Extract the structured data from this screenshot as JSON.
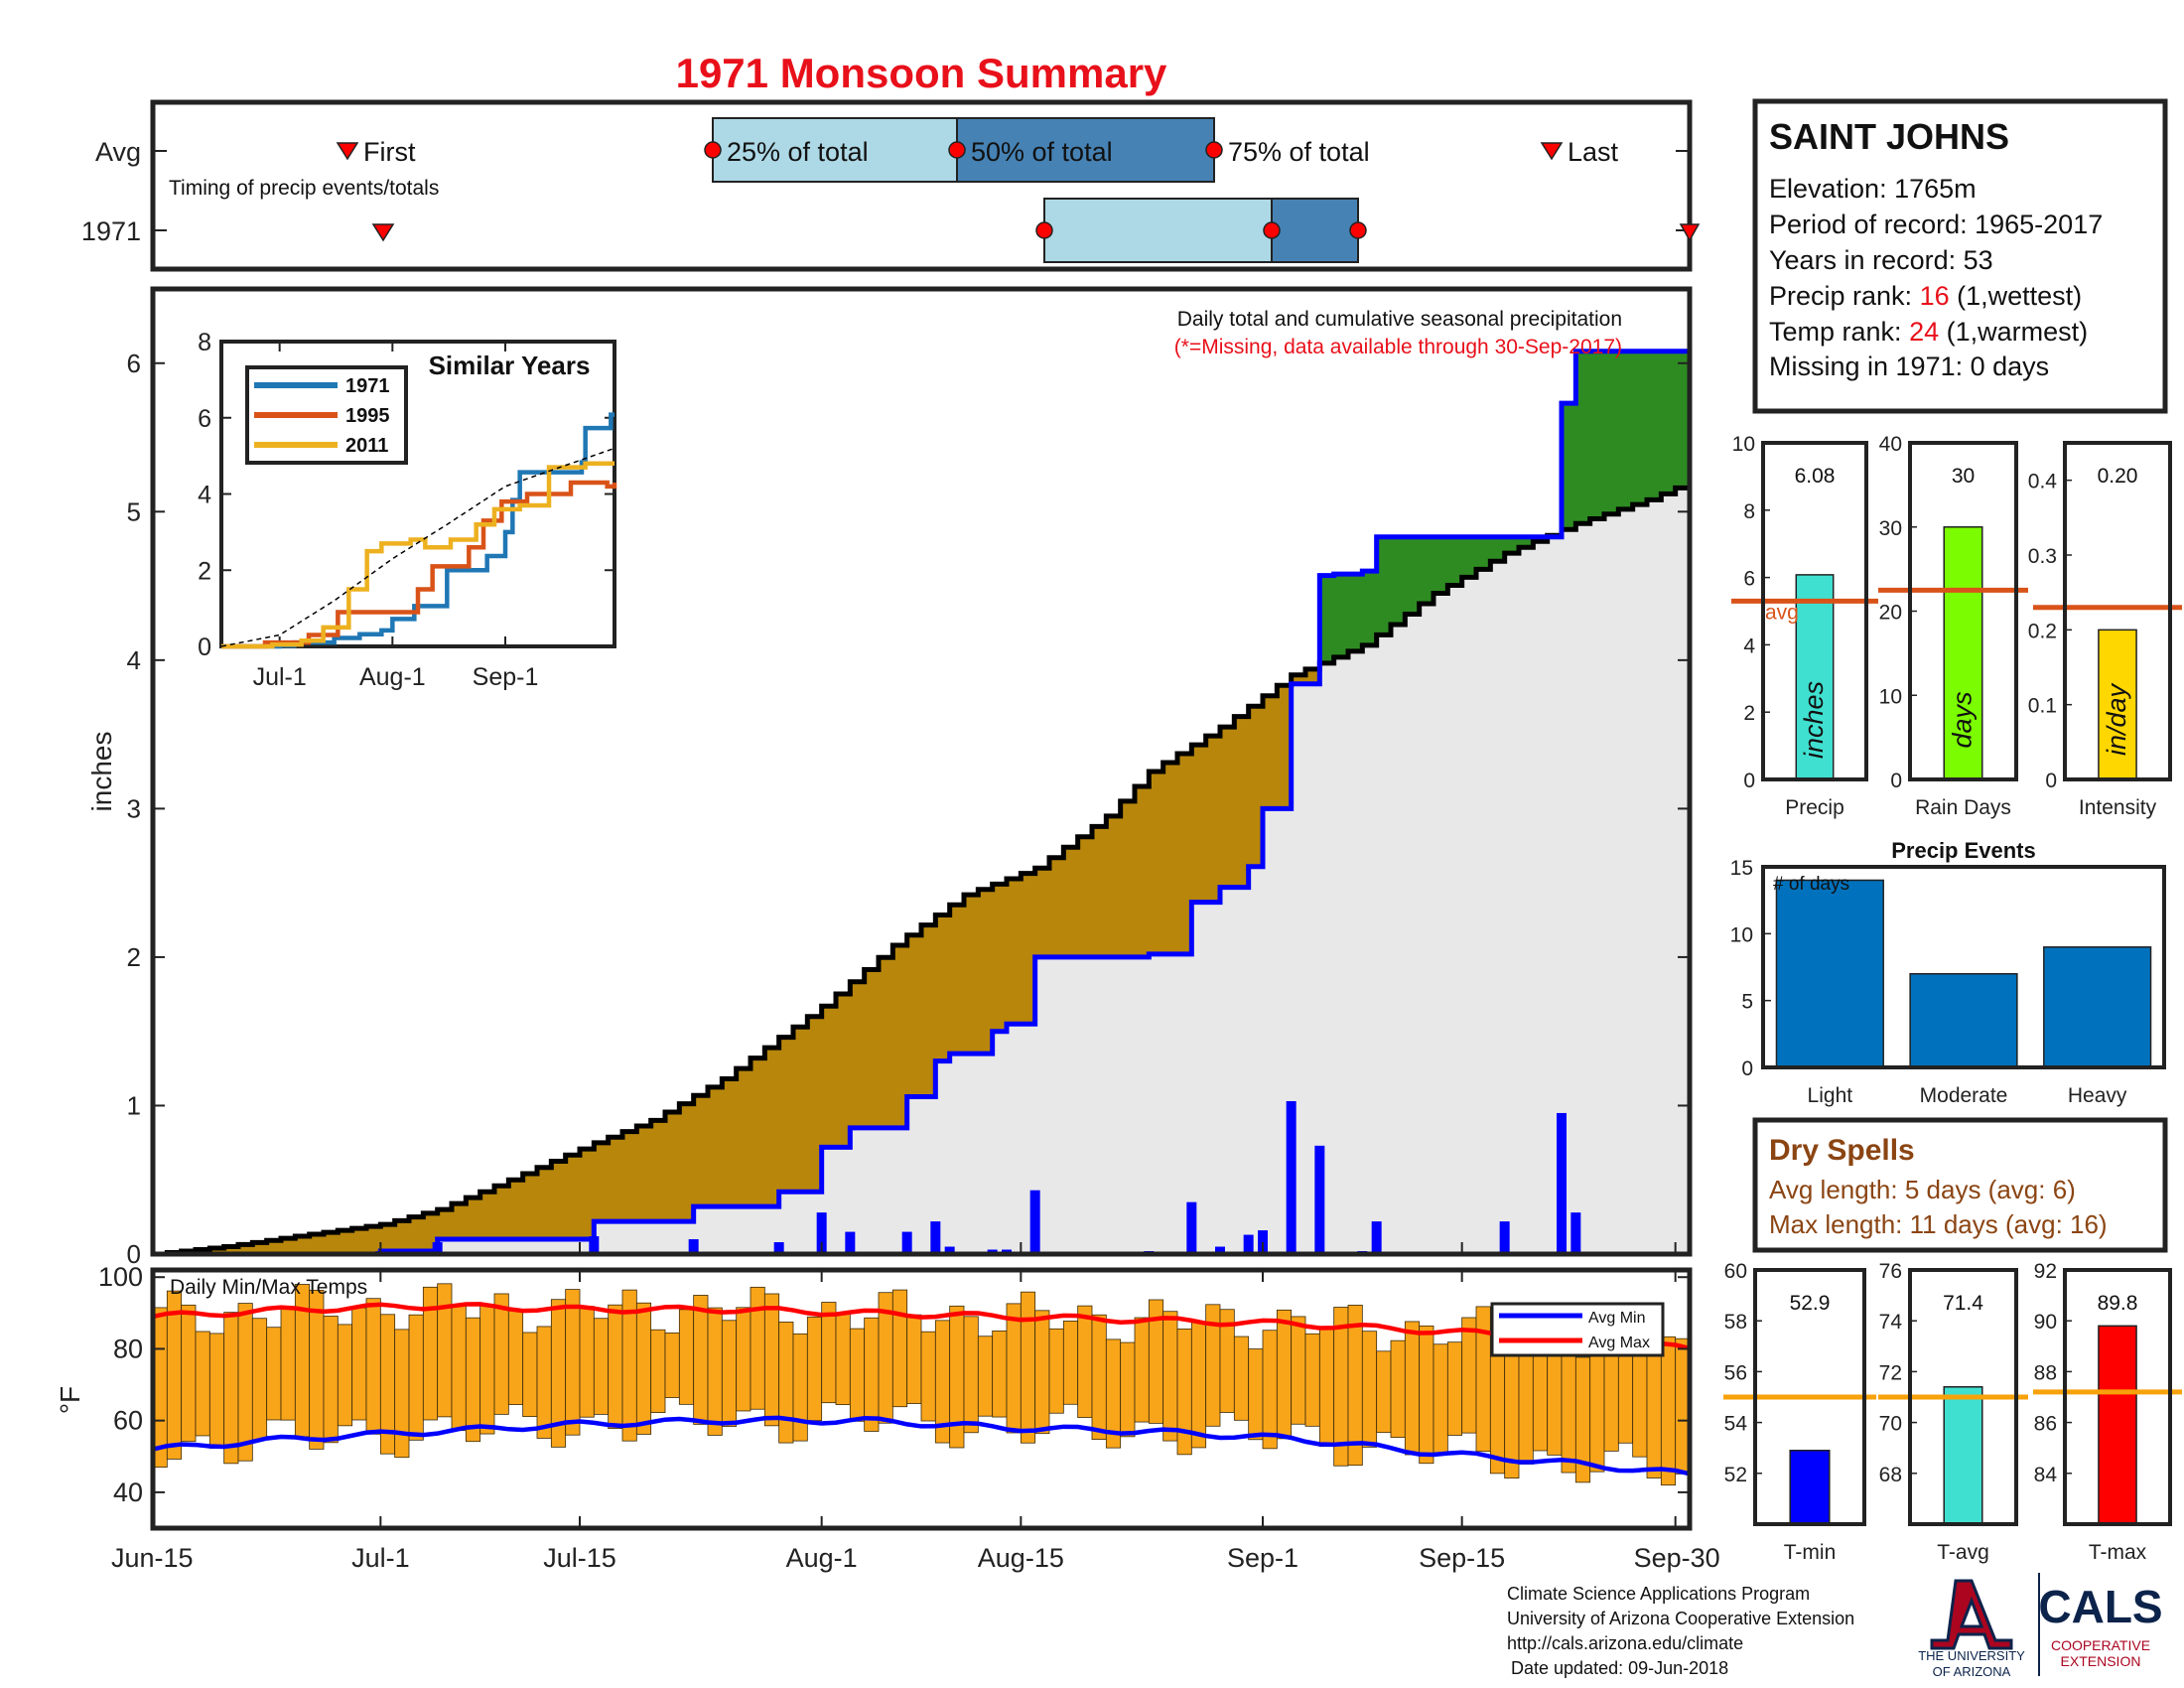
{
  "title": "1971 Monsoon Summary",
  "timing": {
    "row_avg": "Avg",
    "row_year": "1971",
    "subtitle": "Timing of precip events/totals",
    "first_label": "First",
    "last_label": "Last",
    "p25_label": "25% of total",
    "p50_label": "50% of total",
    "p75_label": "75% of total",
    "avg": {
      "first": "Jun-28",
      "p25": "Jul-24",
      "p50": "Aug-7",
      "p75": "Aug-23",
      "last": "Sep-22"
    },
    "year": {
      "first": "Jul-1",
      "p25": "Aug-16",
      "p50": "Sep-1",
      "p75": "Sep-6",
      "last": "Sep-30"
    }
  },
  "station": {
    "name": "SAINT JOHNS",
    "elevation": "Elevation: 1765m",
    "period": "Period of record: 1965-2017",
    "years": "Years in record: 53",
    "precip_rank_label": "Precip rank: ",
    "precip_rank_value": "16",
    "precip_rank_note": " (1,wettest)",
    "temp_rank_label": "Temp rank: ",
    "temp_rank_value": "24",
    "temp_rank_note": " (1,warmest)",
    "missing": "Missing in 1971: 0 days"
  },
  "main_chart": {
    "note1": "Daily total and cumulative seasonal precipitation",
    "note2": "(*=Missing, data available through 30-Sep-2017)",
    "ylabel": "inches"
  },
  "inset": {
    "title": "Similar Years"
  },
  "temp_chart": {
    "title": "Daily Min/Max Temps",
    "ylabel": "°F",
    "legend_min": "Avg Min",
    "legend_max": "Avg Max"
  },
  "summary_bars": {
    "avg_label": "avg"
  },
  "events": {
    "title": "Precip Events",
    "note": "# of days"
  },
  "dry": {
    "title": "Dry Spells",
    "avg": "Avg length: 5 days (avg: 6)",
    "max": "Max length: 11 days (avg: 16)"
  },
  "footer": {
    "l1": "Climate Science Applications Program",
    "l2": "University of Arizona Cooperative Extension",
    "l3": "http://cals.arizona.edu/climate",
    "l4": "Date updated: 09-Jun-2018",
    "ua": "THE UNIVERSITY",
    "ua2": "OF ARIZONA",
    "cals": "CALS",
    "coop": "COOPERATIVE",
    "ext": "EXTENSION"
  },
  "colors": {
    "title": "#e8101a",
    "avg_band": "#b7860b",
    "above": "#2e8b22",
    "year_line": "#0000ff",
    "daily_bar": "#0000ff",
    "temp_bar": "#f9a51a",
    "avg_max": "#ff0000",
    "avg_min": "#0000ff",
    "light_band": "#add8e6",
    "dark_band": "#4682b4",
    "dry": "#8b4513"
  },
  "chart_data": [
    {
      "type": "area",
      "title": "Daily total and cumulative seasonal precipitation",
      "ylabel": "inches",
      "xlim": [
        "Jun-15",
        "Sep-30"
      ],
      "ylim": [
        0,
        6.5
      ],
      "x_ticks": [
        "Jun-15",
        "Jul-1",
        "Jul-15",
        "Aug-1",
        "Aug-15",
        "Sep-1",
        "Sep-15",
        "Sep-30"
      ],
      "y_ticks": [
        0,
        1,
        2,
        3,
        4,
        5,
        6
      ],
      "average_cumulative": {
        "day": [
          0,
          5,
          10,
          16,
          20,
          25,
          31,
          35,
          40,
          47,
          52,
          57,
          62,
          67,
          70,
          75,
          80,
          85,
          90,
          95,
          100,
          105,
          108
        ],
        "value": [
          0,
          0.05,
          0.12,
          0.2,
          0.3,
          0.5,
          0.75,
          0.9,
          1.18,
          1.67,
          2.08,
          2.42,
          2.6,
          2.95,
          3.25,
          3.55,
          3.9,
          4.1,
          4.45,
          4.72,
          4.92,
          5.08,
          5.2
        ]
      },
      "year_cumulative": {
        "day": [
          0,
          16,
          20,
          31,
          38,
          44,
          47,
          49,
          53,
          55,
          56,
          59,
          60,
          62,
          70,
          73,
          75,
          77,
          78,
          80,
          82,
          83,
          85,
          86,
          99,
          100,
          107,
          108
        ],
        "value": [
          0,
          0.02,
          0.1,
          0.22,
          0.32,
          0.42,
          0.72,
          0.85,
          1.06,
          1.3,
          1.35,
          1.5,
          1.55,
          2.0,
          2.02,
          2.37,
          2.47,
          2.61,
          3.0,
          3.84,
          4.57,
          4.58,
          4.6,
          4.83,
          5.73,
          6.08,
          6.08,
          6.08
        ]
      },
      "daily_days": [
        16,
        20,
        31,
        38,
        44,
        47,
        49,
        53,
        55,
        56,
        59,
        60,
        62,
        70,
        73,
        75,
        77,
        78,
        80,
        82,
        83,
        85,
        86,
        95,
        99,
        100
      ],
      "daily_values": [
        0.02,
        0.08,
        0.12,
        0.1,
        0.08,
        0.28,
        0.15,
        0.15,
        0.22,
        0.05,
        0.03,
        0.03,
        0.43,
        0.02,
        0.35,
        0.05,
        0.13,
        0.16,
        1.03,
        0.73,
        0.01,
        0.02,
        0.22,
        0.22,
        0.95,
        0.28
      ]
    },
    {
      "type": "line",
      "title": "Similar Years",
      "x_ticks": [
        "Jul-1",
        "Aug-1",
        "Sep-1"
      ],
      "ylim": [
        0,
        8
      ],
      "y_ticks": [
        0,
        2,
        4,
        6,
        8
      ],
      "series": [
        {
          "name": "1971",
          "color": "#1f77b4",
          "day": [
            0,
            16,
            20,
            31,
            38,
            44,
            47,
            53,
            62,
            73,
            78,
            80,
            82,
            99,
            100,
            107,
            108
          ],
          "values": [
            0,
            0.02,
            0.1,
            0.22,
            0.32,
            0.42,
            0.72,
            1.06,
            2.0,
            2.37,
            3.0,
            3.84,
            4.57,
            4.83,
            5.73,
            6.08,
            6.08
          ]
        },
        {
          "name": "1995",
          "color": "#d95319",
          "day": [
            0,
            12,
            24,
            32,
            40,
            48,
            54,
            58,
            68,
            72,
            77,
            84,
            96,
            106,
            108
          ],
          "values": [
            0,
            0.1,
            0.3,
            0.9,
            0.9,
            0.9,
            1.5,
            2.1,
            2.6,
            3.3,
            3.8,
            4.0,
            4.3,
            4.2,
            4.3
          ]
        },
        {
          "name": "2011",
          "color": "#edb120",
          "day": [
            0,
            14,
            22,
            28,
            35,
            40,
            44,
            52,
            56,
            63,
            70,
            75,
            82,
            90,
            100,
            108
          ],
          "values": [
            0,
            0.05,
            0.15,
            0.5,
            1.5,
            2.5,
            2.7,
            2.8,
            2.6,
            2.8,
            3.2,
            3.6,
            3.7,
            4.7,
            4.8,
            4.8
          ]
        },
        {
          "name": "",
          "color": "#000000",
          "dashed": true,
          "day": [
            0,
            16,
            31,
            47,
            62,
            78,
            93,
            108
          ],
          "values": [
            0,
            0.3,
            1.2,
            2.3,
            3.2,
            4.2,
            4.7,
            5.2
          ]
        }
      ]
    },
    {
      "type": "bar",
      "title": "Daily Min/Max Temps",
      "ylabel": "°F",
      "x_ticks": [
        "Jun-15",
        "Jul-1",
        "Jul-15",
        "Aug-1",
        "Aug-15",
        "Sep-1",
        "Sep-15",
        "Sep-30"
      ],
      "ylim": [
        30,
        102
      ],
      "y_ticks": [
        40,
        60,
        80,
        100
      ],
      "avg_max": {
        "day": [
          0,
          10,
          20,
          30,
          40,
          50,
          60,
          70,
          80,
          90,
          100,
          108
        ],
        "values": [
          89,
          91,
          92,
          91,
          91,
          90,
          89,
          88,
          87,
          85,
          83,
          80
        ]
      },
      "avg_min": {
        "day": [
          0,
          10,
          20,
          30,
          40,
          50,
          60,
          70,
          80,
          90,
          100,
          108
        ],
        "values": [
          52,
          55,
          57,
          59,
          60,
          60,
          58,
          57,
          55,
          51,
          48,
          45
        ]
      }
    },
    {
      "type": "bar",
      "title": "Precip",
      "categories": [
        "Precip"
      ],
      "values": [
        6.08
      ],
      "avg": 5.3,
      "ylim": [
        0,
        10
      ],
      "y_ticks": [
        0,
        2,
        4,
        6,
        8,
        10
      ],
      "unit": "inches",
      "color": "#40e0d0"
    },
    {
      "type": "bar",
      "title": "Rain Days",
      "categories": [
        "Rain Days"
      ],
      "values": [
        30
      ],
      "avg": 22.5,
      "ylim": [
        0,
        40
      ],
      "y_ticks": [
        0,
        10,
        20,
        30,
        40
      ],
      "unit": "days",
      "color": "#7cfc00"
    },
    {
      "type": "bar",
      "title": "Intensity",
      "categories": [
        "Intensity"
      ],
      "values": [
        0.2
      ],
      "avg": 0.23,
      "ylim": [
        0,
        0.45
      ],
      "y_ticks": [
        0,
        0.1,
        0.2,
        0.3,
        0.4
      ],
      "unit": "in/day",
      "color": "#ffd700"
    },
    {
      "type": "bar",
      "title": "Precip Events",
      "categories": [
        "Light",
        "Moderate",
        "Heavy"
      ],
      "values": [
        14,
        7,
        9
      ],
      "ylim": [
        0,
        15
      ],
      "y_ticks": [
        0,
        5,
        10,
        15
      ],
      "color": "#0072bd"
    },
    {
      "type": "bar",
      "title": "T-min",
      "categories": [
        "T-min"
      ],
      "values": [
        52.9
      ],
      "avg": 55,
      "ylim": [
        50,
        60
      ],
      "y_ticks": [
        52,
        54,
        56,
        58,
        60
      ],
      "color": "#0000ff"
    },
    {
      "type": "bar",
      "title": "T-avg",
      "categories": [
        "T-avg"
      ],
      "values": [
        71.4
      ],
      "avg": 71,
      "ylim": [
        66,
        76
      ],
      "y_ticks": [
        68,
        70,
        72,
        74,
        76
      ],
      "color": "#40e0d0"
    },
    {
      "type": "bar",
      "title": "T-max",
      "categories": [
        "T-max"
      ],
      "values": [
        89.8
      ],
      "avg": 87.2,
      "ylim": [
        82,
        92
      ],
      "y_ticks": [
        84,
        86,
        88,
        90,
        92
      ],
      "color": "#ff0000"
    }
  ]
}
